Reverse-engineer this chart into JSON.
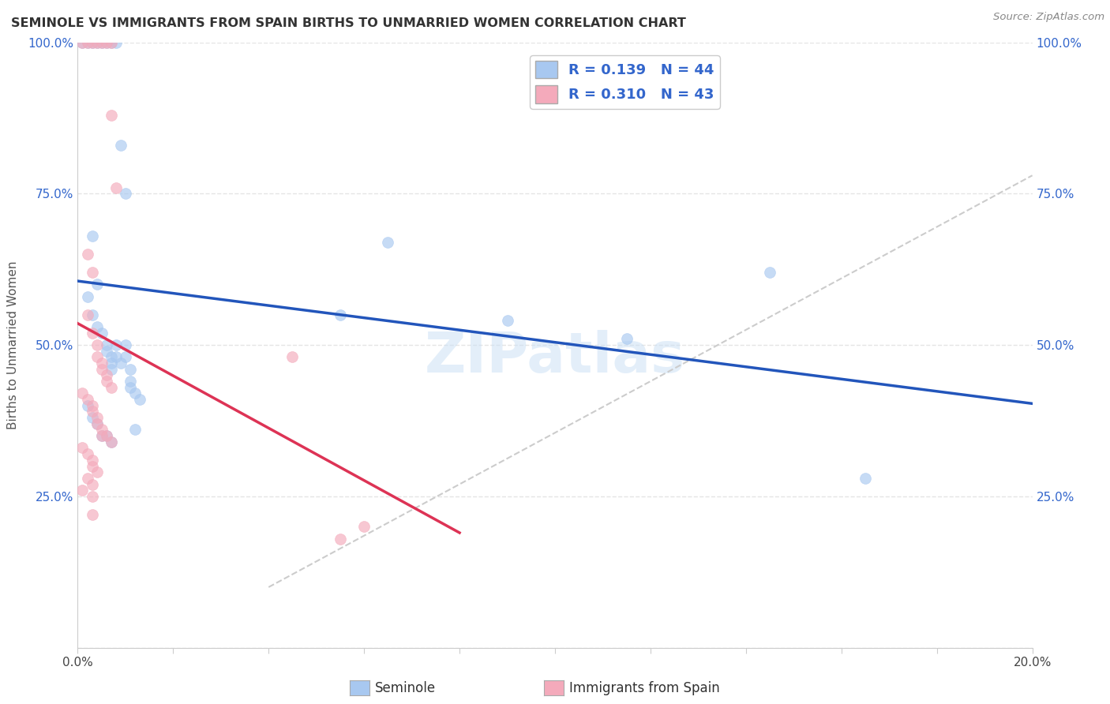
{
  "title": "SEMINOLE VS IMMIGRANTS FROM SPAIN BIRTHS TO UNMARRIED WOMEN CORRELATION CHART",
  "source": "Source: ZipAtlas.com",
  "legend_labels": [
    "Seminole",
    "Immigrants from Spain"
  ],
  "ylabel": "Births to Unmarried Women",
  "xlim": [
    0.0,
    0.2
  ],
  "ylim": [
    0.0,
    1.0
  ],
  "legend_r1": "R = 0.139",
  "legend_n1": "N = 44",
  "legend_r2": "R = 0.310",
  "legend_n2": "N = 43",
  "blue_color": "#A8C8F0",
  "pink_color": "#F4AABB",
  "blue_line_color": "#2255BB",
  "pink_line_color": "#DD3355",
  "blue_scatter": [
    [
      0.001,
      1.0
    ],
    [
      0.002,
      1.0
    ],
    [
      0.003,
      1.0
    ],
    [
      0.004,
      1.0
    ],
    [
      0.005,
      1.0
    ],
    [
      0.006,
      1.0
    ],
    [
      0.007,
      1.0
    ],
    [
      0.008,
      1.0
    ],
    [
      0.009,
      0.83
    ],
    [
      0.01,
      0.75
    ],
    [
      0.003,
      0.68
    ],
    [
      0.004,
      0.6
    ],
    [
      0.002,
      0.58
    ],
    [
      0.003,
      0.55
    ],
    [
      0.004,
      0.53
    ],
    [
      0.005,
      0.52
    ],
    [
      0.006,
      0.5
    ],
    [
      0.006,
      0.49
    ],
    [
      0.007,
      0.48
    ],
    [
      0.007,
      0.47
    ],
    [
      0.007,
      0.46
    ],
    [
      0.008,
      0.5
    ],
    [
      0.008,
      0.48
    ],
    [
      0.009,
      0.47
    ],
    [
      0.01,
      0.5
    ],
    [
      0.01,
      0.48
    ],
    [
      0.011,
      0.46
    ],
    [
      0.011,
      0.44
    ],
    [
      0.011,
      0.43
    ],
    [
      0.012,
      0.42
    ],
    [
      0.013,
      0.41
    ],
    [
      0.002,
      0.4
    ],
    [
      0.003,
      0.38
    ],
    [
      0.004,
      0.37
    ],
    [
      0.005,
      0.35
    ],
    [
      0.006,
      0.35
    ],
    [
      0.007,
      0.34
    ],
    [
      0.012,
      0.36
    ],
    [
      0.055,
      0.55
    ],
    [
      0.065,
      0.67
    ],
    [
      0.09,
      0.54
    ],
    [
      0.115,
      0.51
    ],
    [
      0.145,
      0.62
    ],
    [
      0.165,
      0.28
    ]
  ],
  "pink_scatter": [
    [
      0.001,
      1.0
    ],
    [
      0.002,
      1.0
    ],
    [
      0.003,
      1.0
    ],
    [
      0.004,
      1.0
    ],
    [
      0.005,
      1.0
    ],
    [
      0.006,
      1.0
    ],
    [
      0.007,
      1.0
    ],
    [
      0.007,
      0.88
    ],
    [
      0.008,
      0.76
    ],
    [
      0.002,
      0.65
    ],
    [
      0.003,
      0.62
    ],
    [
      0.002,
      0.55
    ],
    [
      0.003,
      0.52
    ],
    [
      0.004,
      0.5
    ],
    [
      0.004,
      0.48
    ],
    [
      0.005,
      0.47
    ],
    [
      0.005,
      0.46
    ],
    [
      0.006,
      0.45
    ],
    [
      0.006,
      0.44
    ],
    [
      0.007,
      0.43
    ],
    [
      0.001,
      0.42
    ],
    [
      0.002,
      0.41
    ],
    [
      0.003,
      0.4
    ],
    [
      0.003,
      0.39
    ],
    [
      0.004,
      0.38
    ],
    [
      0.004,
      0.37
    ],
    [
      0.005,
      0.36
    ],
    [
      0.005,
      0.35
    ],
    [
      0.006,
      0.35
    ],
    [
      0.007,
      0.34
    ],
    [
      0.001,
      0.33
    ],
    [
      0.002,
      0.32
    ],
    [
      0.003,
      0.31
    ],
    [
      0.003,
      0.3
    ],
    [
      0.004,
      0.29
    ],
    [
      0.002,
      0.28
    ],
    [
      0.003,
      0.27
    ],
    [
      0.001,
      0.26
    ],
    [
      0.003,
      0.25
    ],
    [
      0.003,
      0.22
    ],
    [
      0.045,
      0.48
    ],
    [
      0.06,
      0.2
    ],
    [
      0.055,
      0.18
    ]
  ],
  "background_color": "#ffffff",
  "grid_color": "#e5e5e5"
}
